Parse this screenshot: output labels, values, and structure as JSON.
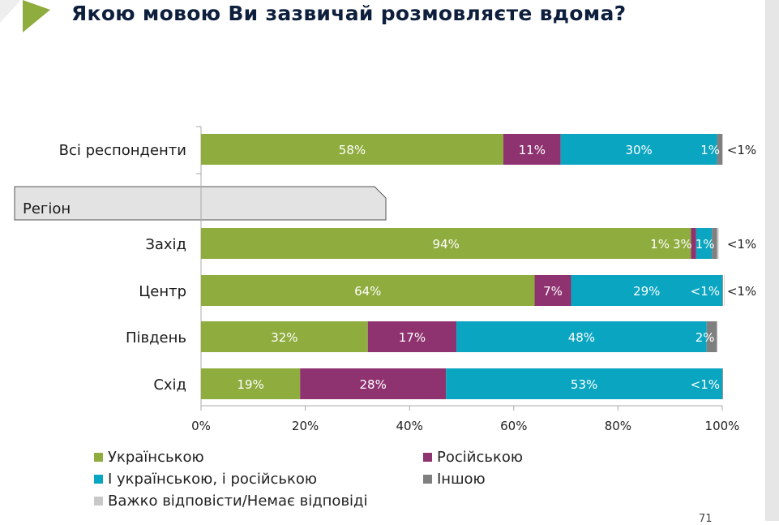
{
  "title": "Якою мовою Ви зазвичай розмовляєте вдома?",
  "page_number": "71",
  "colors": {
    "ukrainian": "#8fac3e",
    "russian": "#8e3370",
    "both": "#0aa5c0",
    "other": "#7f7f7f",
    "dont_know": "#c8c8c8",
    "accent": "#8fac3e",
    "title": "#0d1f3c"
  },
  "chart_data": {
    "type": "bar",
    "orientation": "horizontal-stacked-100",
    "section_label": "Регіон",
    "categories": [
      "Всі респонденти",
      "Захід",
      "Центр",
      "Південь",
      "Схід"
    ],
    "series": [
      {
        "name": "Українською",
        "values": [
          58,
          94,
          64,
          32,
          19
        ],
        "labels": [
          "58%",
          "94%",
          "64%",
          "32%",
          "19%"
        ]
      },
      {
        "name": "Російською",
        "values": [
          11,
          1,
          7,
          17,
          28
        ],
        "labels": [
          "11%",
          "1%",
          "7%",
          "17%",
          "28%"
        ]
      },
      {
        "name": "І українською, і російською",
        "values": [
          30,
          3,
          29,
          48,
          53
        ],
        "labels": [
          "30%",
          "3%",
          "29%",
          "48%",
          "53%"
        ]
      },
      {
        "name": "Іншою",
        "values": [
          1,
          1,
          0.3,
          2,
          0.3
        ],
        "labels": [
          "1%",
          "1%",
          "<1%",
          "2%",
          "<1%"
        ]
      },
      {
        "name": "Важко відповісти/Немає відповіді",
        "values": [
          0.3,
          0.3,
          0.3,
          0,
          0
        ],
        "labels": [
          "<1%",
          "<1%",
          "<1%",
          "",
          ""
        ]
      }
    ],
    "xlim": [
      0,
      100
    ],
    "xticks": [
      "0%",
      "20%",
      "40%",
      "60%",
      "80%",
      "100%"
    ],
    "legend_position": "bottom"
  }
}
